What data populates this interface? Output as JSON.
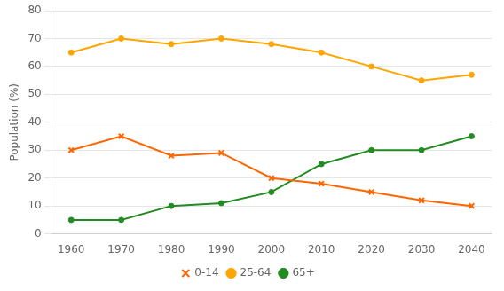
{
  "chart_data": {
    "type": "line",
    "ylabel": "Population (%)",
    "x": [
      1960,
      1970,
      1980,
      1990,
      2000,
      2010,
      2020,
      2030,
      2040
    ],
    "series": [
      {
        "name": "0-14",
        "color": "#FF6600",
        "marker": "x",
        "values": [
          30,
          35,
          28,
          29,
          20,
          18,
          15,
          12,
          10
        ]
      },
      {
        "name": "25-64",
        "color": "#FFA500",
        "marker": "circle",
        "values": [
          65,
          70,
          68,
          70,
          68,
          65,
          60,
          55,
          57
        ]
      },
      {
        "name": "65+",
        "color": "#228B22",
        "marker": "circle",
        "values": [
          5,
          5,
          10,
          11,
          15,
          25,
          30,
          30,
          35
        ]
      }
    ],
    "xlim": [
      1956,
      2044
    ],
    "xticks": [
      1960,
      1970,
      1980,
      1990,
      2000,
      2010,
      2020,
      2030,
      2040
    ],
    "ylim": [
      0,
      80
    ],
    "yticks": [
      0,
      10,
      20,
      30,
      40,
      50,
      60,
      70,
      80
    ],
    "grid": true,
    "legend": "bottom"
  }
}
